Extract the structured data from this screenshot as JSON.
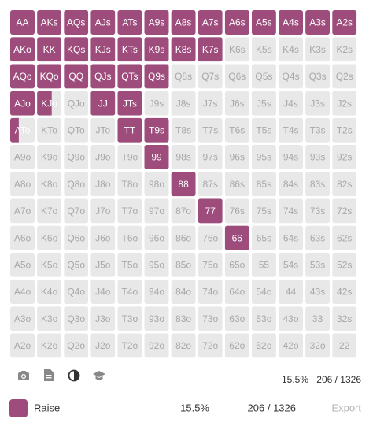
{
  "grid": {
    "rows": [
      [
        "AA",
        "AKs",
        "AQs",
        "AJs",
        "ATs",
        "A9s",
        "A8s",
        "A7s",
        "A6s",
        "A5s",
        "A4s",
        "A3s",
        "A2s"
      ],
      [
        "AKo",
        "KK",
        "KQs",
        "KJs",
        "KTs",
        "K9s",
        "K8s",
        "K7s",
        "K6s",
        "K5s",
        "K4s",
        "K3s",
        "K2s"
      ],
      [
        "AQo",
        "KQo",
        "QQ",
        "QJs",
        "QTs",
        "Q9s",
        "Q8s",
        "Q7s",
        "Q6s",
        "Q5s",
        "Q4s",
        "Q3s",
        "Q2s"
      ],
      [
        "AJo",
        "KJo",
        "QJo",
        "JJ",
        "JTs",
        "J9s",
        "J8s",
        "J7s",
        "J6s",
        "J5s",
        "J4s",
        "J3s",
        "J2s"
      ],
      [
        "ATo",
        "KTo",
        "QTo",
        "JTo",
        "TT",
        "T9s",
        "T8s",
        "T7s",
        "T6s",
        "T5s",
        "T4s",
        "T3s",
        "T2s"
      ],
      [
        "A9o",
        "K9o",
        "Q9o",
        "J9o",
        "T9o",
        "99",
        "98s",
        "97s",
        "96s",
        "95s",
        "94s",
        "93s",
        "92s"
      ],
      [
        "A8o",
        "K8o",
        "Q8o",
        "J8o",
        "T8o",
        "98o",
        "88",
        "87s",
        "86s",
        "85s",
        "84s",
        "83s",
        "82s"
      ],
      [
        "A7o",
        "K7o",
        "Q7o",
        "J7o",
        "T7o",
        "97o",
        "87o",
        "77",
        "76s",
        "75s",
        "74s",
        "73s",
        "72s"
      ],
      [
        "A6o",
        "K6o",
        "Q6o",
        "J6o",
        "T6o",
        "96o",
        "86o",
        "76o",
        "66",
        "65s",
        "64s",
        "63s",
        "62s"
      ],
      [
        "A5o",
        "K5o",
        "Q5o",
        "J5o",
        "T5o",
        "95o",
        "85o",
        "75o",
        "65o",
        "55",
        "54s",
        "53s",
        "52s"
      ],
      [
        "A4o",
        "K4o",
        "Q4o",
        "J4o",
        "T4o",
        "94o",
        "84o",
        "74o",
        "64o",
        "54o",
        "44",
        "43s",
        "42s"
      ],
      [
        "A3o",
        "K3o",
        "Q3o",
        "J3o",
        "T3o",
        "93o",
        "83o",
        "73o",
        "63o",
        "53o",
        "43o",
        "33",
        "32s"
      ],
      [
        "A2o",
        "K2o",
        "Q2o",
        "J2o",
        "T2o",
        "92o",
        "82o",
        "72o",
        "62o",
        "52o",
        "42o",
        "32o",
        "22"
      ]
    ],
    "freq": [
      [
        1,
        1,
        1,
        1,
        1,
        1,
        1,
        1,
        1,
        1,
        1,
        1,
        1
      ],
      [
        1,
        1,
        1,
        1,
        1,
        1,
        1,
        1,
        0,
        0,
        0,
        0,
        0
      ],
      [
        1,
        1,
        1,
        1,
        1,
        1,
        0,
        0,
        0,
        0,
        0,
        0,
        0
      ],
      [
        1,
        0.6,
        0,
        1,
        1,
        0,
        0,
        0,
        0,
        0,
        0,
        0,
        0
      ],
      [
        0.35,
        0,
        0,
        0,
        1,
        1,
        0,
        0,
        0,
        0,
        0,
        0,
        0
      ],
      [
        0,
        0,
        0,
        0,
        0,
        1,
        0,
        0,
        0,
        0,
        0,
        0,
        0
      ],
      [
        0,
        0,
        0,
        0,
        0,
        0,
        1,
        0,
        0,
        0,
        0,
        0,
        0
      ],
      [
        0,
        0,
        0,
        0,
        0,
        0,
        0,
        1,
        0,
        0,
        0,
        0,
        0
      ],
      [
        0,
        0,
        0,
        0,
        0,
        0,
        0,
        0,
        1,
        0,
        0,
        0,
        0
      ],
      [
        0,
        0,
        0,
        0,
        0,
        0,
        0,
        0,
        0,
        0,
        0,
        0,
        0
      ],
      [
        0,
        0,
        0,
        0,
        0,
        0,
        0,
        0,
        0,
        0,
        0,
        0,
        0
      ],
      [
        0,
        0,
        0,
        0,
        0,
        0,
        0,
        0,
        0,
        0,
        0,
        0,
        0
      ],
      [
        0,
        0,
        0,
        0,
        0,
        0,
        0,
        0,
        0,
        0,
        0,
        0,
        0
      ]
    ]
  },
  "summary": {
    "percent": "15.5%",
    "combos": "206 / 1326"
  },
  "legend": {
    "label": "Raise",
    "percent": "15.5%",
    "combos": "206 / 1326",
    "export": "Export"
  }
}
